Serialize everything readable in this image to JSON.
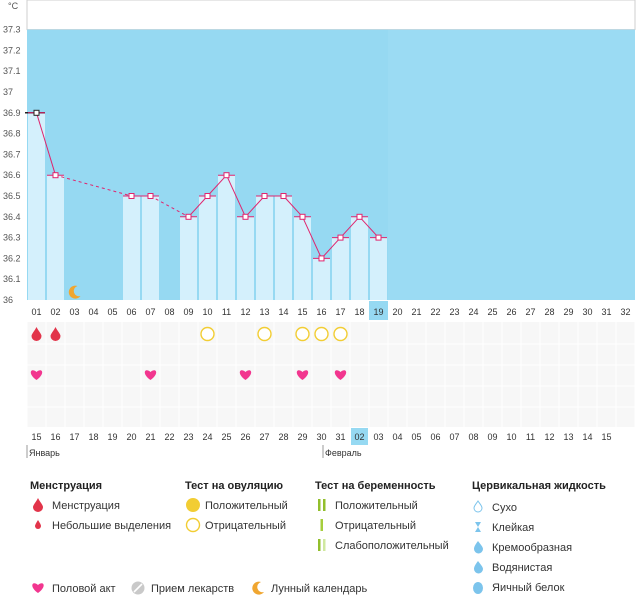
{
  "chart_data": {
    "type": "bar",
    "title": "",
    "ylabel": "°C",
    "xlabel": "",
    "ylim": [
      36,
      37.3
    ],
    "y_ticks": [
      "36",
      "36.1",
      "36.2",
      "36.3",
      "36.4",
      "36.5",
      "36.6",
      "36.7",
      "36.8",
      "36.9",
      "37",
      "37.1",
      "37.2",
      "37.3"
    ],
    "cycle_days": [
      "01",
      "02",
      "03",
      "04",
      "05",
      "06",
      "07",
      "08",
      "09",
      "10",
      "11",
      "12",
      "13",
      "14",
      "15",
      "16",
      "17",
      "18",
      "19",
      "20",
      "21",
      "22",
      "23",
      "24",
      "25",
      "26",
      "27",
      "28",
      "29",
      "30",
      "31",
      "32"
    ],
    "temperatures": [
      36.9,
      36.6,
      null,
      null,
      null,
      36.5,
      36.5,
      null,
      36.4,
      36.5,
      36.6,
      36.4,
      36.5,
      36.5,
      36.4,
      36.2,
      36.3,
      36.4,
      36.3,
      null,
      null,
      null,
      null,
      null,
      null,
      null,
      null,
      null,
      null,
      null,
      null,
      null
    ],
    "filled_through_day": 19,
    "current_day": "19",
    "coverline": 36.9
  },
  "calendar": {
    "dates": [
      "15",
      "16",
      "17",
      "18",
      "19",
      "20",
      "21",
      "22",
      "23",
      "24",
      "25",
      "26",
      "27",
      "28",
      "29",
      "30",
      "31",
      "02",
      "03",
      "04",
      "05",
      "06",
      "07",
      "08",
      "09",
      "10",
      "11",
      "12",
      "13",
      "14",
      "15"
    ],
    "weekend": [
      true,
      false,
      false,
      false,
      false,
      false,
      true,
      true,
      false,
      false,
      false,
      false,
      false,
      true,
      true,
      false,
      false,
      false,
      false,
      true,
      true,
      false,
      false,
      false,
      false,
      false,
      true,
      true,
      false,
      false,
      false
    ],
    "missing_day": "01",
    "months": [
      "Январь",
      "Февраль"
    ]
  },
  "events": {
    "menstruation_days": [
      1,
      2
    ],
    "moon_day": 3,
    "ovulation_negative_days": [
      10,
      13,
      15,
      16,
      17
    ],
    "intercourse_days": [
      1,
      7,
      12,
      15,
      17
    ]
  },
  "legend": {
    "menstruation": {
      "title": "Менструация",
      "items": [
        "Менструация",
        "Небольшие выделения"
      ]
    },
    "ovulation": {
      "title": "Тест на овуляцию",
      "items": [
        "Положительный",
        "Отрицательный"
      ]
    },
    "pregnancy": {
      "title": "Тест на беременность",
      "items": [
        "Положительный",
        "Отрицательный",
        "Слабоположительный"
      ]
    },
    "cervical": {
      "title": "Цервикальная жидкость",
      "items": [
        "Сухо",
        "Клейкая",
        "Кремообразная",
        "Водянистая",
        "Яичный белок"
      ]
    },
    "bottom": [
      "Половой акт",
      "Прием лекарств",
      "Лунный календарь"
    ]
  },
  "colors": {
    "plot_bg": "#96d9f2",
    "bar": "#d4f0fc",
    "line": "#e0246e",
    "heart": "#f2368f",
    "drop": "#e2344a",
    "ovu": "#f2cd33",
    "moon": "#f0a630",
    "preg_pos": "#92bf2c",
    "preg_neg": "#a6ce3c",
    "preg_weak": "#d0e8a0",
    "cerv": "#7cc4ec",
    "today_bg": "#96d9f2",
    "weekend_text": "#d0234a"
  }
}
